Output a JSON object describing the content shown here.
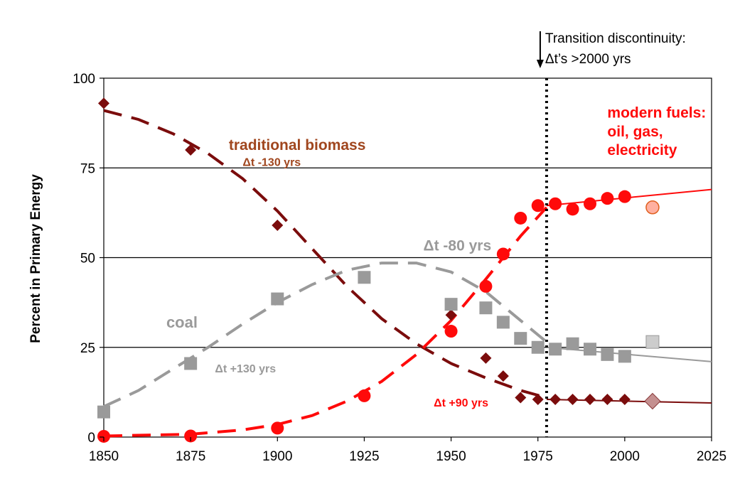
{
  "chart_data": {
    "type": "scatter",
    "ylabel": "Percent in Primary Energy",
    "xlabel": "",
    "xlim": [
      1850,
      2025
    ],
    "ylim": [
      0,
      100
    ],
    "x_ticks": [
      "1850",
      "1875",
      "1900",
      "1925",
      "1950",
      "1975",
      "2000",
      "2025"
    ],
    "y_ticks": [
      "0",
      "25",
      "50",
      "75",
      "100"
    ],
    "gridlines_y": [
      25,
      50,
      75
    ],
    "transition_year": 1977.5,
    "transition_annotation": [
      "Transition discontinuity:",
      "Δt’s >2000 yrs"
    ],
    "series": [
      {
        "key": "biomass",
        "marker": "diamond",
        "color": "#7b0c0c",
        "points": [
          [
            1850,
            93
          ],
          [
            1875,
            80
          ],
          [
            1900,
            59
          ],
          [
            1950,
            34
          ],
          [
            1960,
            22
          ],
          [
            1965,
            17
          ],
          [
            1970,
            11
          ],
          [
            1975,
            10.5
          ],
          [
            1980,
            10.5
          ],
          [
            1985,
            10.5
          ],
          [
            1990,
            10.5
          ],
          [
            1995,
            10.5
          ],
          [
            2000,
            10.5
          ]
        ],
        "projection": [
          [
            2008,
            10
          ]
        ],
        "projection_color": "#c49090",
        "fit": [
          [
            1850,
            91
          ],
          [
            1860,
            88.5
          ],
          [
            1870,
            84.5
          ],
          [
            1880,
            79
          ],
          [
            1890,
            72
          ],
          [
            1900,
            63
          ],
          [
            1910,
            52.5
          ],
          [
            1920,
            42
          ],
          [
            1930,
            33
          ],
          [
            1940,
            26
          ],
          [
            1950,
            20.5
          ],
          [
            1960,
            16.5
          ],
          [
            1970,
            13
          ],
          [
            1977.5,
            11
          ]
        ],
        "fit_after": [
          [
            1977.5,
            10.5
          ],
          [
            2025,
            9.5
          ]
        ],
        "labels": [
          {
            "lines": [
              "traditional biomass"
            ],
            "x": 1886,
            "y": 80,
            "size": 21,
            "color": "#a0461e"
          },
          {
            "lines": [
              "Δt -130 yrs"
            ],
            "x": 1890,
            "y": 75.5,
            "size": 16,
            "color": "#a0461e"
          }
        ]
      },
      {
        "key": "coal",
        "marker": "square",
        "color": "#9a9a9a",
        "points": [
          [
            1850,
            7
          ],
          [
            1875,
            20.5
          ],
          [
            1900,
            38.5
          ],
          [
            1925,
            44.5
          ],
          [
            1950,
            37
          ],
          [
            1960,
            36
          ],
          [
            1965,
            32
          ],
          [
            1970,
            27.5
          ],
          [
            1975,
            25
          ],
          [
            1980,
            24.5
          ],
          [
            1985,
            26
          ],
          [
            1990,
            24.5
          ],
          [
            1995,
            23
          ],
          [
            2000,
            22.5
          ]
        ],
        "projection": [
          [
            2008,
            26.5
          ]
        ],
        "projection_color": "#cccccc",
        "fit": [
          [
            1850,
            8.5
          ],
          [
            1860,
            13
          ],
          [
            1870,
            19
          ],
          [
            1880,
            25
          ],
          [
            1890,
            31.5
          ],
          [
            1900,
            37.5
          ],
          [
            1910,
            42.5
          ],
          [
            1920,
            46.5
          ],
          [
            1930,
            48.5
          ],
          [
            1940,
            48.5
          ],
          [
            1950,
            46
          ],
          [
            1960,
            40.5
          ],
          [
            1970,
            32.5
          ],
          [
            1977.5,
            26.5
          ]
        ],
        "fit_after": [
          [
            1977.5,
            25
          ],
          [
            2025,
            21
          ]
        ],
        "labels": [
          {
            "lines": [
              "coal"
            ],
            "x": 1868,
            "y": 30.5,
            "size": 22,
            "color": "#9a9a9a"
          },
          {
            "lines": [
              "Δt +130 yrs"
            ],
            "x": 1882,
            "y": 18,
            "size": 16,
            "color": "#9a9a9a"
          },
          {
            "lines": [
              "Δt -80 yrs"
            ],
            "x": 1942,
            "y": 52,
            "size": 21,
            "color": "#9a9a9a"
          }
        ]
      },
      {
        "key": "modern",
        "marker": "circle",
        "color": "#ff0a0a",
        "points": [
          [
            1850,
            0.2
          ],
          [
            1875,
            0.3
          ],
          [
            1900,
            2.5
          ],
          [
            1925,
            11.5
          ],
          [
            1950,
            29.5
          ],
          [
            1960,
            42
          ],
          [
            1965,
            51
          ],
          [
            1970,
            61
          ],
          [
            1975,
            64.5
          ],
          [
            1980,
            65
          ],
          [
            1985,
            63.5
          ],
          [
            1990,
            65
          ],
          [
            1995,
            66.5
          ],
          [
            2000,
            67
          ]
        ],
        "projection": [
          [
            2008,
            64
          ]
        ],
        "projection_color": "#ffb0a0",
        "fit": [
          [
            1850,
            0.3
          ],
          [
            1875,
            0.8
          ],
          [
            1890,
            2
          ],
          [
            1900,
            3.5
          ],
          [
            1910,
            6
          ],
          [
            1920,
            10
          ],
          [
            1930,
            15.5
          ],
          [
            1940,
            23
          ],
          [
            1950,
            32.5
          ],
          [
            1960,
            44
          ],
          [
            1970,
            56
          ],
          [
            1977.5,
            64
          ]
        ],
        "fit_after": [
          [
            1977.5,
            64.5
          ],
          [
            2025,
            69
          ]
        ],
        "labels": [
          {
            "lines": [
              "Δt +90 yrs"
            ],
            "x": 1945,
            "y": 8.5,
            "size": 16,
            "color": "#ff0a0a"
          },
          {
            "lines": [
              "modern fuels:",
              "oil, gas,",
              "electricity"
            ],
            "x": 1995,
            "y": 89,
            "size": 21,
            "color": "#ff0a0a"
          }
        ]
      }
    ]
  }
}
